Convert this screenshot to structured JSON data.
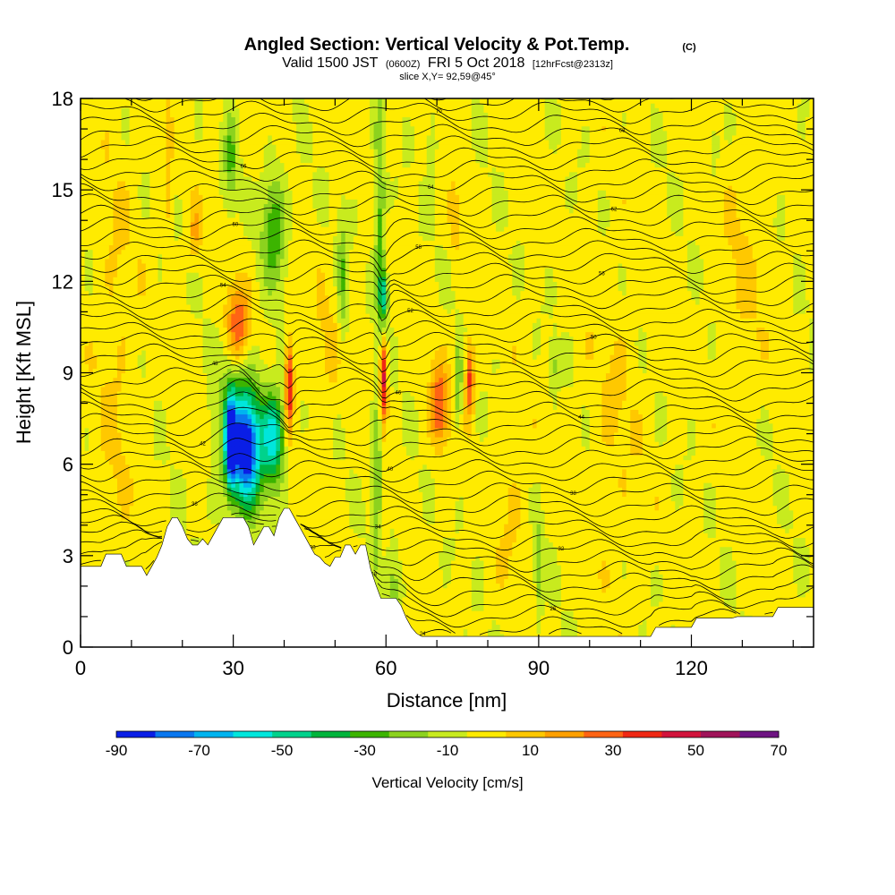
{
  "chart_data": {
    "type": "heatmap",
    "title": "Angled Section: Vertical Velocity & Pot.Temp.",
    "title_unit": "(C)",
    "subtitle": {
      "prefix": "Valid 1500 JST",
      "zulu": "(0600Z)",
      "date": "FRI 5 Oct 2018",
      "forecast": "[12hrFcst@2313z]"
    },
    "slice_label": "slice X,Y= 92,59@45°",
    "xlabel": "Distance [nm]",
    "ylabel": "Height [Kft MSL]",
    "xlim": [
      0,
      144
    ],
    "ylim": [
      0,
      18
    ],
    "x_ticks": [
      "0",
      "30",
      "60",
      "90",
      "120"
    ],
    "x_tick_values": [
      0,
      30,
      60,
      90,
      120
    ],
    "y_ticks": [
      "0",
      "3",
      "6",
      "9",
      "12",
      "15",
      "18"
    ],
    "y_tick_values": [
      0,
      3,
      6,
      9,
      12,
      15,
      18
    ],
    "colorbar": {
      "title": "Vertical Velocity [cm/s]",
      "labels": [
        "-90",
        "-70",
        "-50",
        "-30",
        "-10",
        "10",
        "30",
        "50",
        "70"
      ],
      "bounds": [
        -90,
        -80,
        -70,
        -60,
        -50,
        -40,
        -30,
        -20,
        -10,
        0,
        10,
        20,
        30,
        40,
        50,
        60,
        70
      ],
      "colors": [
        "#0a1ee6",
        "#0a78f0",
        "#00b4f0",
        "#00e6dc",
        "#00d28c",
        "#00b43c",
        "#3cb400",
        "#8cd21e",
        "#c8eb1e",
        "#ffeb00",
        "#ffc800",
        "#ffa000",
        "#ff6414",
        "#f02814",
        "#d2143c",
        "#a0145a",
        "#6e1482"
      ]
    },
    "background_value": 3,
    "features": [
      {
        "kind": "updraft",
        "x": 31,
        "y": 10.6,
        "rx": 2.2,
        "ry": 1.3,
        "value": 38
      },
      {
        "kind": "updraft",
        "x": 41,
        "y": 8.6,
        "rx": 0.8,
        "ry": 1.5,
        "value": 55
      },
      {
        "kind": "updraft",
        "x": 59.5,
        "y": 8.8,
        "rx": 0.7,
        "ry": 1.4,
        "value": 58
      },
      {
        "kind": "updraft",
        "x": 70.5,
        "y": 7.9,
        "rx": 1.8,
        "ry": 1.3,
        "value": 40
      },
      {
        "kind": "updraft",
        "x": 76.5,
        "y": 8.8,
        "rx": 0.8,
        "ry": 1.2,
        "value": 45
      },
      {
        "kind": "updraft",
        "x": 22.5,
        "y": 13.6,
        "rx": 1.2,
        "ry": 0.9,
        "value": 22
      },
      {
        "kind": "updraft",
        "x": 73.5,
        "y": 14.0,
        "rx": 1.0,
        "ry": 1.1,
        "value": 18
      },
      {
        "kind": "updraft",
        "x": 17.2,
        "y": 15.5,
        "rx": 0.8,
        "ry": 2.5,
        "value": 15
      },
      {
        "kind": "downdraft",
        "x": 32,
        "y": 6.9,
        "rx": 4.8,
        "ry": 2.3,
        "value": -42
      },
      {
        "kind": "downdraft",
        "x": 29.5,
        "y": 6.8,
        "rx": 1.0,
        "ry": 1.4,
        "value": -78
      },
      {
        "kind": "downdraft",
        "x": 32.5,
        "y": 6.4,
        "rx": 2.5,
        "ry": 1.6,
        "value": -55
      },
      {
        "kind": "downdraft",
        "x": 38,
        "y": 6.9,
        "rx": 2.0,
        "ry": 1.4,
        "value": -50
      },
      {
        "kind": "downdraft",
        "x": 38,
        "y": 13.8,
        "rx": 2.4,
        "ry": 1.9,
        "value": -28
      },
      {
        "kind": "downdraft",
        "x": 29.5,
        "y": 16.0,
        "rx": 1.3,
        "ry": 1.6,
        "value": -20
      },
      {
        "kind": "downdraft",
        "x": 58.8,
        "y": 14.0,
        "rx": 1.0,
        "ry": 4.0,
        "value": -25
      },
      {
        "kind": "downdraft",
        "x": 59.6,
        "y": 11.5,
        "rx": 0.8,
        "ry": 0.9,
        "value": -40
      },
      {
        "kind": "downdraft",
        "x": 58.2,
        "y": 5.5,
        "rx": 0.9,
        "ry": 2.5,
        "value": -25
      },
      {
        "kind": "downdraft",
        "x": 51.5,
        "y": 12.0,
        "rx": 1.0,
        "ry": 2.2,
        "value": -18
      },
      {
        "kind": "downdraft",
        "x": 74.3,
        "y": 8.5,
        "rx": 0.5,
        "ry": 1.4,
        "value": -30
      },
      {
        "kind": "downdraft",
        "x": 90,
        "y": 2.6,
        "rx": 0.8,
        "ry": 1.6,
        "value": -18
      },
      {
        "kind": "downdraft",
        "x": 61.5,
        "y": 2.0,
        "rx": 1.2,
        "ry": 1.5,
        "value": -15
      },
      {
        "kind": "downdraft",
        "x": 69,
        "y": 16.5,
        "rx": 1.0,
        "ry": 1.2,
        "value": -12
      },
      {
        "kind": "downdraft",
        "x": 93,
        "y": 9.3,
        "rx": 0.8,
        "ry": 0.9,
        "value": -12
      },
      {
        "kind": "downdraft",
        "x": 124.5,
        "y": 16.3,
        "rx": 0.8,
        "ry": 0.8,
        "value": -12
      },
      {
        "kind": "weak_up",
        "x": 105,
        "y": 7.5,
        "rx": 5.0,
        "ry": 5.0,
        "value": 10
      },
      {
        "kind": "weak_up",
        "x": 130,
        "y": 12.0,
        "rx": 4.0,
        "ry": 5.0,
        "value": 10
      },
      {
        "kind": "weak_up",
        "x": 7,
        "y": 10.0,
        "rx": 4.0,
        "ry": 7.0,
        "value": 11
      },
      {
        "kind": "weak_up",
        "x": 85,
        "y": 4.5,
        "rx": 3.0,
        "ry": 3.0,
        "value": 11
      },
      {
        "kind": "weak_up",
        "x": 48,
        "y": 9.5,
        "rx": 3.0,
        "ry": 2.0,
        "value": 12
      }
    ],
    "terrain": [
      [
        0,
        2.65
      ],
      [
        1,
        2.65
      ],
      [
        2,
        2.65
      ],
      [
        3,
        2.65
      ],
      [
        4,
        2.65
      ],
      [
        5,
        3.05
      ],
      [
        6,
        3.05
      ],
      [
        7,
        3.05
      ],
      [
        8,
        3.05
      ],
      [
        9,
        2.65
      ],
      [
        10,
        2.65
      ],
      [
        11,
        2.65
      ],
      [
        12,
        2.65
      ],
      [
        13,
        2.35
      ],
      [
        14,
        2.65
      ],
      [
        15,
        2.95
      ],
      [
        16,
        3.35
      ],
      [
        17,
        3.95
      ],
      [
        18,
        4.25
      ],
      [
        19,
        4.25
      ],
      [
        20,
        3.95
      ],
      [
        21,
        3.55
      ],
      [
        22,
        3.35
      ],
      [
        23,
        3.35
      ],
      [
        24,
        3.55
      ],
      [
        25,
        3.35
      ],
      [
        26,
        3.65
      ],
      [
        27,
        3.95
      ],
      [
        28,
        4.25
      ],
      [
        29,
        4.25
      ],
      [
        30,
        4.25
      ],
      [
        31,
        4.25
      ],
      [
        32,
        4.25
      ],
      [
        33,
        3.95
      ],
      [
        34,
        3.35
      ],
      [
        35,
        3.65
      ],
      [
        36,
        3.95
      ],
      [
        37,
        3.95
      ],
      [
        38,
        3.65
      ],
      [
        39,
        4.25
      ],
      [
        40,
        4.55
      ],
      [
        41,
        4.55
      ],
      [
        42,
        4.25
      ],
      [
        43,
        3.95
      ],
      [
        44,
        3.65
      ],
      [
        45,
        3.35
      ],
      [
        46,
        3.05
      ],
      [
        47,
        2.95
      ],
      [
        48,
        2.75
      ],
      [
        49,
        2.65
      ],
      [
        50,
        2.95
      ],
      [
        51,
        2.95
      ],
      [
        52,
        3.35
      ],
      [
        53,
        3.35
      ],
      [
        54,
        3.05
      ],
      [
        55,
        3.35
      ],
      [
        56,
        3.35
      ],
      [
        57,
        2.55
      ],
      [
        58,
        2.05
      ],
      [
        59,
        1.6
      ],
      [
        60,
        1.6
      ],
      [
        61,
        1.6
      ],
      [
        62,
        1.6
      ],
      [
        63,
        1.35
      ],
      [
        64,
        0.95
      ],
      [
        65,
        0.65
      ],
      [
        66,
        0.45
      ],
      [
        67,
        0.35
      ],
      [
        68,
        0.35
      ],
      [
        69,
        0.35
      ],
      [
        70,
        0.35
      ],
      [
        72,
        0.35
      ],
      [
        75,
        0.35
      ],
      [
        80,
        0.35
      ],
      [
        85,
        0.35
      ],
      [
        90,
        0.35
      ],
      [
        95,
        0.35
      ],
      [
        100,
        0.35
      ],
      [
        105,
        0.35
      ],
      [
        110,
        0.35
      ],
      [
        112,
        0.35
      ],
      [
        113,
        0.65
      ],
      [
        118,
        0.65
      ],
      [
        120,
        0.65
      ],
      [
        121,
        0.95
      ],
      [
        125,
        0.95
      ],
      [
        128,
        0.95
      ],
      [
        129,
        1.0
      ],
      [
        132,
        1.0
      ],
      [
        136,
        1.0
      ],
      [
        137,
        1.3
      ],
      [
        144,
        1.3
      ]
    ],
    "theta_levels": [
      24,
      25,
      26,
      27,
      28,
      29,
      30,
      31,
      32,
      33,
      34,
      35,
      36,
      37,
      38,
      39,
      40,
      41,
      42,
      43,
      44,
      45,
      46,
      47,
      48,
      49,
      50,
      51,
      52,
      53,
      54,
      55,
      56,
      57,
      58,
      59,
      60,
      61,
      62,
      63,
      64,
      65,
      66,
      67,
      68,
      69,
      70,
      71,
      72
    ]
  }
}
